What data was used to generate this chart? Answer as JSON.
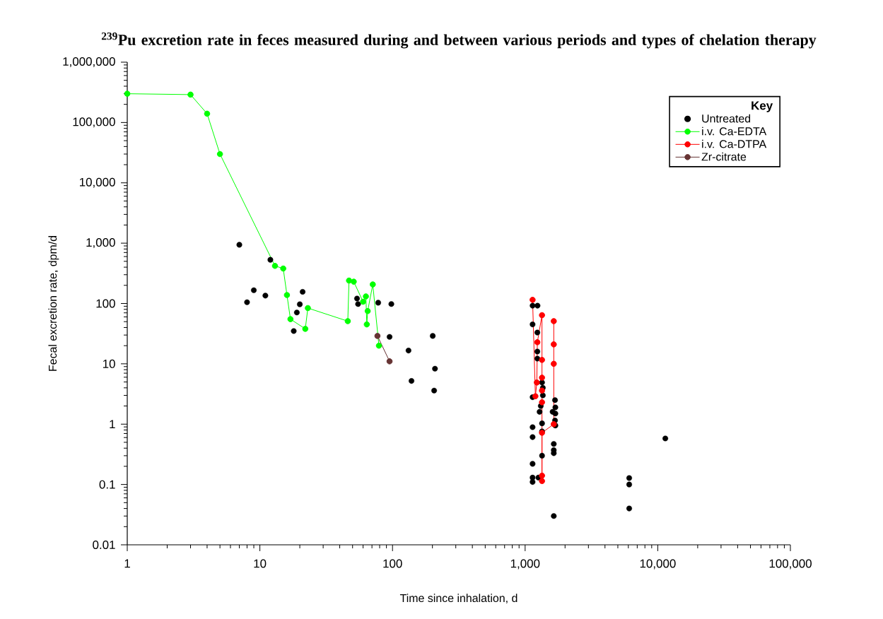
{
  "chart_data": {
    "type": "line",
    "title": "$^{239}$Pu excretion rate in feces measured during and between various periods and types of chelation therapy",
    "xlabel": "Time since inhalation, d",
    "ylabel": "Fecal excretion rate, dpm/d",
    "legend_title": "Key",
    "log": "xy",
    "legend": "top right",
    "marker": "circle",
    "line_style": "solid",
    "xlim": [
      1,
      100000
    ],
    "ylim": [
      0.01,
      1000000
    ],
    "xticks": [
      1,
      10,
      100,
      {
        "value": 1000,
        "label": "1,000"
      },
      {
        "value": 10000,
        "label": "10,000"
      },
      {
        "value": 100000,
        "label": "100,000"
      }
    ],
    "yticks": [
      0.01,
      0.1,
      1,
      10,
      100,
      {
        "value": 1000,
        "label": "1,000"
      },
      {
        "value": 10000,
        "label": "10,000"
      },
      {
        "value": 100000,
        "label": "100,000"
      },
      {
        "value": 1000000,
        "label": "1,000,000"
      }
    ],
    "series": [
      {
        "name": "Untreated",
        "type": "scatter",
        "color": "#000000",
        "x": [
          7,
          8,
          9,
          11,
          12,
          18,
          19,
          20,
          21,
          54,
          55,
          78,
          95,
          98,
          132,
          139,
          201,
          206,
          209,
          1138,
          1138,
          1138,
          1138,
          1138,
          1138,
          1138,
          1138,
          1240,
          1236,
          1236,
          1236,
          1285,
          1312,
          1341,
          1341,
          1341,
          1341,
          1360,
          1360,
          1260,
          1680,
          1690,
          1611,
          1690,
          1680,
          1690,
          1644,
          1644,
          1644,
          1644,
          6090,
          6090,
          6090,
          11400
        ],
        "values": [
          940,
          105,
          166,
          135,
          530,
          35,
          71,
          97,
          156,
          121,
          98,
          103,
          28,
          98,
          16.6,
          5.2,
          29,
          3.6,
          8.3,
          92,
          45,
          2.8,
          0.89,
          0.61,
          0.22,
          0.13,
          0.11,
          92,
          33,
          16,
          12.2,
          1.6,
          2.0,
          4.9,
          1.03,
          0.76,
          0.3,
          4.0,
          3.0,
          0.13,
          2.5,
          1.9,
          1.6,
          1.5,
          1.15,
          0.95,
          0.47,
          0.37,
          0.33,
          0.03,
          0.128,
          0.1,
          0.04,
          0.58
        ]
      },
      {
        "name": "i.v. Ca-EDTA",
        "color": "#00ff00",
        "x": [
          1,
          3,
          4,
          5,
          13,
          15,
          16,
          17,
          22,
          23,
          46,
          47,
          51,
          60,
          63,
          64,
          65,
          71,
          79
        ],
        "values": [
          300000,
          290000,
          140000,
          30000,
          420,
          380,
          138,
          55,
          38,
          84,
          51,
          240,
          230,
          107,
          131,
          45,
          75,
          207,
          20
        ]
      },
      {
        "name": "i.v. Ca-DTPA",
        "color": "#ff0000",
        "x": [
          1138,
          1195,
          1225,
          1236,
          1340,
          1340,
          1340,
          1340,
          1340,
          1340,
          1340,
          1340,
          1644,
          1644,
          1644,
          1644
        ],
        "values": [
          115,
          2.9,
          4.9,
          22.8,
          64,
          11.6,
          5.9,
          3.6,
          2.3,
          0.14,
          0.114,
          0.72,
          1.0,
          10,
          21,
          51
        ]
      },
      {
        "name": "Zr-citrate",
        "color": "#663333",
        "x": [
          77,
          95
        ],
        "values": [
          29,
          11
        ]
      }
    ]
  }
}
